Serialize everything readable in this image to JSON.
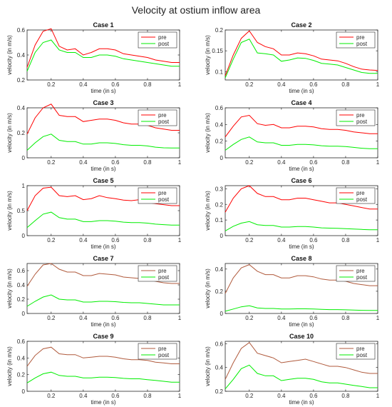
{
  "figure": {
    "title": "Velocity at ostium inflow area"
  },
  "chart_data": [
    {
      "type": "line",
      "title": "Case 1",
      "xlabel": "time (in s)",
      "ylabel": "velocity (in m/s)",
      "xlim": [
        0.05,
        1
      ],
      "ylim": [
        0.2,
        0.6
      ],
      "xticks": [
        0.2,
        0.4,
        0.6,
        0.8,
        1
      ],
      "xtick_labels": [
        "0.2",
        "0.4",
        "0.6",
        "0.8",
        "1"
      ],
      "yticks": [
        0.2,
        0.4,
        0.6
      ],
      "ytick_labels": [
        "0.2",
        "0.4",
        "0.6"
      ],
      "legend": "top-right",
      "x": [
        0.05,
        0.1,
        0.15,
        0.2,
        0.25,
        0.3,
        0.35,
        0.4,
        0.45,
        0.5,
        0.55,
        0.6,
        0.65,
        0.7,
        0.75,
        0.8,
        0.85,
        0.9,
        0.95,
        1.0
      ],
      "series": [
        {
          "name": "pre",
          "color": "#ff0000",
          "values": [
            0.3,
            0.48,
            0.59,
            0.61,
            0.47,
            0.44,
            0.45,
            0.4,
            0.42,
            0.45,
            0.45,
            0.44,
            0.41,
            0.4,
            0.39,
            0.38,
            0.36,
            0.35,
            0.34,
            0.34
          ]
        },
        {
          "name": "post",
          "color": "#00ee00",
          "values": [
            0.27,
            0.42,
            0.5,
            0.52,
            0.44,
            0.42,
            0.42,
            0.38,
            0.38,
            0.4,
            0.4,
            0.39,
            0.37,
            0.36,
            0.35,
            0.34,
            0.33,
            0.32,
            0.31,
            0.31
          ]
        }
      ]
    },
    {
      "type": "line",
      "title": "Case 2",
      "xlabel": "time (in s)",
      "ylabel": "velocity (in m/s)",
      "xlim": [
        0.05,
        1
      ],
      "ylim": [
        0.08,
        0.2
      ],
      "xticks": [
        0.2,
        0.4,
        0.6,
        0.8,
        1
      ],
      "xtick_labels": [
        "0.2",
        "0.4",
        "0.6",
        "0.8",
        "1"
      ],
      "yticks": [
        0.1,
        0.15,
        0.2
      ],
      "ytick_labels": [
        "0.1",
        "0.15",
        "0.2"
      ],
      "legend": "top-right",
      "x": [
        0.05,
        0.1,
        0.15,
        0.2,
        0.25,
        0.3,
        0.35,
        0.4,
        0.45,
        0.5,
        0.55,
        0.6,
        0.65,
        0.7,
        0.75,
        0.8,
        0.85,
        0.9,
        0.95,
        1.0
      ],
      "series": [
        {
          "name": "pre",
          "color": "#ff0000",
          "values": [
            0.09,
            0.14,
            0.18,
            0.198,
            0.17,
            0.16,
            0.155,
            0.14,
            0.14,
            0.145,
            0.143,
            0.138,
            0.13,
            0.128,
            0.126,
            0.12,
            0.112,
            0.106,
            0.104,
            0.103
          ]
        },
        {
          "name": "post",
          "color": "#00ee00",
          "values": [
            0.085,
            0.13,
            0.17,
            0.178,
            0.145,
            0.143,
            0.14,
            0.125,
            0.128,
            0.133,
            0.132,
            0.127,
            0.12,
            0.118,
            0.116,
            0.11,
            0.104,
            0.098,
            0.096,
            0.096
          ]
        }
      ]
    },
    {
      "type": "line",
      "title": "Case 3",
      "xlabel": "time (in s)",
      "ylabel": "velocity (in m/s)",
      "xlim": [
        0.05,
        1
      ],
      "ylim": [
        0,
        0.4
      ],
      "xticks": [
        0.2,
        0.4,
        0.6,
        0.8,
        1
      ],
      "xtick_labels": [
        "0.2",
        "0.4",
        "0.6",
        "0.8",
        "1"
      ],
      "yticks": [
        0,
        0.2,
        0.4
      ],
      "ytick_labels": [
        "0",
        "0.2",
        "0.4"
      ],
      "legend": "top-right",
      "x": [
        0.05,
        0.1,
        0.15,
        0.2,
        0.25,
        0.3,
        0.35,
        0.4,
        0.45,
        0.5,
        0.55,
        0.6,
        0.65,
        0.7,
        0.75,
        0.8,
        0.85,
        0.9,
        0.95,
        1.0
      ],
      "series": [
        {
          "name": "pre",
          "color": "#ff0000",
          "values": [
            0.19,
            0.32,
            0.4,
            0.43,
            0.34,
            0.33,
            0.33,
            0.29,
            0.3,
            0.31,
            0.31,
            0.3,
            0.28,
            0.27,
            0.27,
            0.26,
            0.24,
            0.23,
            0.22,
            0.22
          ]
        },
        {
          "name": "post",
          "color": "#00ee00",
          "values": [
            0.06,
            0.12,
            0.17,
            0.19,
            0.14,
            0.13,
            0.13,
            0.11,
            0.11,
            0.12,
            0.12,
            0.115,
            0.105,
            0.1,
            0.1,
            0.095,
            0.085,
            0.08,
            0.078,
            0.078
          ]
        }
      ]
    },
    {
      "type": "line",
      "title": "Case 4",
      "xlabel": "time (in s)",
      "ylabel": "velocity (in m/s)",
      "xlim": [
        0.05,
        1
      ],
      "ylim": [
        0,
        0.6
      ],
      "xticks": [
        0.2,
        0.4,
        0.6,
        0.8,
        1
      ],
      "xtick_labels": [
        "0.2",
        "0.4",
        "0.6",
        "0.8",
        "1"
      ],
      "yticks": [
        0,
        0.2,
        0.4,
        0.6
      ],
      "ytick_labels": [
        "0",
        "0.2",
        "0.4",
        "0.6"
      ],
      "legend": "top-right",
      "x": [
        0.05,
        0.1,
        0.15,
        0.2,
        0.25,
        0.3,
        0.35,
        0.4,
        0.45,
        0.5,
        0.55,
        0.6,
        0.65,
        0.7,
        0.75,
        0.8,
        0.85,
        0.9,
        0.95,
        1.0
      ],
      "series": [
        {
          "name": "pre",
          "color": "#ff0000",
          "values": [
            0.25,
            0.38,
            0.49,
            0.51,
            0.41,
            0.39,
            0.4,
            0.36,
            0.36,
            0.38,
            0.38,
            0.37,
            0.35,
            0.34,
            0.34,
            0.33,
            0.31,
            0.3,
            0.29,
            0.29
          ]
        },
        {
          "name": "post",
          "color": "#00ee00",
          "values": [
            0.09,
            0.16,
            0.22,
            0.25,
            0.19,
            0.18,
            0.18,
            0.15,
            0.15,
            0.16,
            0.16,
            0.155,
            0.145,
            0.14,
            0.14,
            0.135,
            0.125,
            0.115,
            0.11,
            0.11
          ]
        }
      ]
    },
    {
      "type": "line",
      "title": "Case 5",
      "xlabel": "time (in s)",
      "ylabel": "velocity (in m/s)",
      "xlim": [
        0.05,
        1
      ],
      "ylim": [
        0,
        1
      ],
      "xticks": [
        0.2,
        0.4,
        0.6,
        0.8,
        1
      ],
      "xtick_labels": [
        "0.2",
        "0.4",
        "0.6",
        "0.8",
        "1"
      ],
      "yticks": [
        0,
        0.5,
        1
      ],
      "ytick_labels": [
        "0",
        "0.5",
        "1"
      ],
      "legend": "top-right",
      "x": [
        0.05,
        0.1,
        0.15,
        0.2,
        0.25,
        0.3,
        0.35,
        0.4,
        0.45,
        0.5,
        0.55,
        0.6,
        0.65,
        0.7,
        0.75,
        0.8,
        0.85,
        0.9,
        0.95,
        1.0
      ],
      "series": [
        {
          "name": "pre",
          "color": "#ff0000",
          "values": [
            0.5,
            0.8,
            0.95,
            0.97,
            0.8,
            0.78,
            0.8,
            0.72,
            0.74,
            0.8,
            0.76,
            0.74,
            0.71,
            0.7,
            0.72,
            0.66,
            0.64,
            0.62,
            0.6,
            0.6
          ]
        },
        {
          "name": "post",
          "color": "#00ee00",
          "values": [
            0.16,
            0.3,
            0.43,
            0.47,
            0.36,
            0.33,
            0.33,
            0.28,
            0.28,
            0.3,
            0.3,
            0.29,
            0.27,
            0.26,
            0.26,
            0.25,
            0.23,
            0.22,
            0.21,
            0.21
          ]
        }
      ]
    },
    {
      "type": "line",
      "title": "Case 6",
      "xlabel": "time (in s)",
      "ylabel": "velocity (in m/s)",
      "xlim": [
        0.05,
        1
      ],
      "ylim": [
        0,
        0.32
      ],
      "xticks": [
        0.2,
        0.4,
        0.6,
        0.8,
        1
      ],
      "xtick_labels": [
        "0.2",
        "0.4",
        "0.6",
        "0.8",
        "1"
      ],
      "yticks": [
        0,
        0.1,
        0.2,
        0.3
      ],
      "ytick_labels": [
        "0",
        "0.1",
        "0.2",
        "0.3"
      ],
      "legend": "top-right",
      "x": [
        0.05,
        0.1,
        0.15,
        0.2,
        0.25,
        0.3,
        0.35,
        0.4,
        0.45,
        0.5,
        0.55,
        0.6,
        0.65,
        0.7,
        0.75,
        0.8,
        0.85,
        0.9,
        0.95,
        1.0
      ],
      "series": [
        {
          "name": "pre",
          "color": "#ff0000",
          "values": [
            0.15,
            0.24,
            0.3,
            0.32,
            0.27,
            0.25,
            0.25,
            0.23,
            0.23,
            0.24,
            0.24,
            0.23,
            0.22,
            0.21,
            0.21,
            0.2,
            0.19,
            0.18,
            0.17,
            0.17
          ]
        },
        {
          "name": "post",
          "color": "#00ee00",
          "values": [
            0.03,
            0.06,
            0.08,
            0.09,
            0.07,
            0.065,
            0.065,
            0.055,
            0.055,
            0.058,
            0.058,
            0.055,
            0.05,
            0.048,
            0.047,
            0.045,
            0.042,
            0.04,
            0.038,
            0.038
          ]
        }
      ]
    },
    {
      "type": "line",
      "title": "Case 7",
      "xlabel": "time (in s)",
      "ylabel": "velocity (in m/s)",
      "xlim": [
        0.05,
        1
      ],
      "ylim": [
        0,
        0.7
      ],
      "xticks": [
        0.2,
        0.4,
        0.6,
        0.8,
        1
      ],
      "xtick_labels": [
        "0.2",
        "0.4",
        "0.6",
        "0.8",
        "1"
      ],
      "yticks": [
        0,
        0.2,
        0.4,
        0.6
      ],
      "ytick_labels": [
        "0",
        "0.2",
        "0.4",
        "0.6"
      ],
      "legend": "top-right",
      "x": [
        0.05,
        0.1,
        0.15,
        0.2,
        0.25,
        0.3,
        0.35,
        0.4,
        0.45,
        0.5,
        0.55,
        0.6,
        0.65,
        0.7,
        0.75,
        0.8,
        0.85,
        0.9,
        0.95,
        1.0
      ],
      "series": [
        {
          "name": "pre",
          "color": "#b05a3c",
          "values": [
            0.38,
            0.55,
            0.68,
            0.7,
            0.62,
            0.58,
            0.58,
            0.53,
            0.53,
            0.56,
            0.55,
            0.54,
            0.51,
            0.5,
            0.49,
            0.48,
            0.45,
            0.43,
            0.42,
            0.42
          ]
        },
        {
          "name": "post",
          "color": "#00ee00",
          "values": [
            0.1,
            0.17,
            0.23,
            0.26,
            0.2,
            0.19,
            0.19,
            0.16,
            0.16,
            0.17,
            0.17,
            0.165,
            0.155,
            0.15,
            0.15,
            0.14,
            0.13,
            0.12,
            0.12,
            0.12
          ]
        }
      ]
    },
    {
      "type": "line",
      "title": "Case 8",
      "xlabel": "time (in s)",
      "ylabel": "velocity (in m/s)",
      "xlim": [
        0.05,
        1
      ],
      "ylim": [
        0,
        0.45
      ],
      "xticks": [
        0.2,
        0.4,
        0.6,
        0.8,
        1
      ],
      "xtick_labels": [
        "0.2",
        "0.4",
        "0.6",
        "0.8",
        "1"
      ],
      "yticks": [
        0,
        0.2,
        0.4
      ],
      "ytick_labels": [
        "0",
        "0.2",
        "0.4"
      ],
      "legend": "top-right",
      "x": [
        0.05,
        0.1,
        0.15,
        0.2,
        0.25,
        0.3,
        0.35,
        0.4,
        0.45,
        0.5,
        0.55,
        0.6,
        0.65,
        0.7,
        0.75,
        0.8,
        0.85,
        0.9,
        0.95,
        1.0
      ],
      "series": [
        {
          "name": "pre",
          "color": "#b05a3c",
          "values": [
            0.18,
            0.32,
            0.41,
            0.44,
            0.38,
            0.35,
            0.35,
            0.32,
            0.32,
            0.34,
            0.34,
            0.33,
            0.31,
            0.3,
            0.3,
            0.29,
            0.27,
            0.26,
            0.25,
            0.25
          ]
        },
        {
          "name": "post",
          "color": "#00ee00",
          "values": [
            0.02,
            0.04,
            0.06,
            0.07,
            0.05,
            0.045,
            0.045,
            0.04,
            0.04,
            0.042,
            0.042,
            0.04,
            0.037,
            0.035,
            0.035,
            0.033,
            0.03,
            0.028,
            0.027,
            0.027
          ]
        }
      ]
    },
    {
      "type": "line",
      "title": "Case 9",
      "xlabel": "time (in s)",
      "ylabel": "velocity (in m/s)",
      "xlim": [
        0.05,
        1
      ],
      "ylim": [
        0,
        0.6
      ],
      "xticks": [
        0.2,
        0.4,
        0.6,
        0.8,
        1
      ],
      "xtick_labels": [
        "0.2",
        "0.4",
        "0.6",
        "0.8",
        "1"
      ],
      "yticks": [
        0,
        0.2,
        0.4,
        0.6
      ],
      "ytick_labels": [
        "0",
        "0.2",
        "0.4",
        "0.6"
      ],
      "legend": "top-right",
      "x": [
        0.05,
        0.1,
        0.15,
        0.2,
        0.25,
        0.3,
        0.35,
        0.4,
        0.45,
        0.5,
        0.55,
        0.6,
        0.65,
        0.7,
        0.75,
        0.8,
        0.85,
        0.9,
        0.95,
        1.0
      ],
      "series": [
        {
          "name": "pre",
          "color": "#b05a3c",
          "values": [
            0.3,
            0.43,
            0.51,
            0.53,
            0.45,
            0.44,
            0.44,
            0.4,
            0.41,
            0.42,
            0.42,
            0.41,
            0.39,
            0.38,
            0.38,
            0.37,
            0.35,
            0.34,
            0.33,
            0.33
          ]
        },
        {
          "name": "post",
          "color": "#00ee00",
          "values": [
            0.1,
            0.16,
            0.21,
            0.23,
            0.19,
            0.18,
            0.18,
            0.16,
            0.16,
            0.17,
            0.17,
            0.165,
            0.155,
            0.15,
            0.15,
            0.14,
            0.13,
            0.12,
            0.11,
            0.11
          ]
        }
      ]
    },
    {
      "type": "line",
      "title": "Case 10",
      "xlabel": "time (in s)",
      "ylabel": "velocity (in m/s)",
      "xlim": [
        0.05,
        1
      ],
      "ylim": [
        0.2,
        0.62
      ],
      "xticks": [
        0.2,
        0.4,
        0.6,
        0.8,
        1
      ],
      "xtick_labels": [
        "0.2",
        "0.4",
        "0.6",
        "0.8",
        "1"
      ],
      "yticks": [
        0.2,
        0.4,
        0.6
      ],
      "ytick_labels": [
        "0.2",
        "0.4",
        "0.6"
      ],
      "legend": "top-right",
      "x": [
        0.05,
        0.1,
        0.15,
        0.2,
        0.25,
        0.3,
        0.35,
        0.4,
        0.45,
        0.5,
        0.55,
        0.6,
        0.65,
        0.7,
        0.75,
        0.8,
        0.85,
        0.9,
        0.95,
        1.0
      ],
      "series": [
        {
          "name": "pre",
          "color": "#b05a3c",
          "values": [
            0.3,
            0.44,
            0.56,
            0.61,
            0.52,
            0.5,
            0.48,
            0.44,
            0.45,
            0.46,
            0.47,
            0.45,
            0.43,
            0.41,
            0.41,
            0.4,
            0.38,
            0.36,
            0.35,
            0.35
          ]
        },
        {
          "name": "post",
          "color": "#00ee00",
          "values": [
            0.22,
            0.3,
            0.39,
            0.42,
            0.35,
            0.33,
            0.33,
            0.29,
            0.3,
            0.31,
            0.31,
            0.3,
            0.28,
            0.27,
            0.27,
            0.26,
            0.25,
            0.24,
            0.23,
            0.23
          ]
        }
      ]
    }
  ]
}
